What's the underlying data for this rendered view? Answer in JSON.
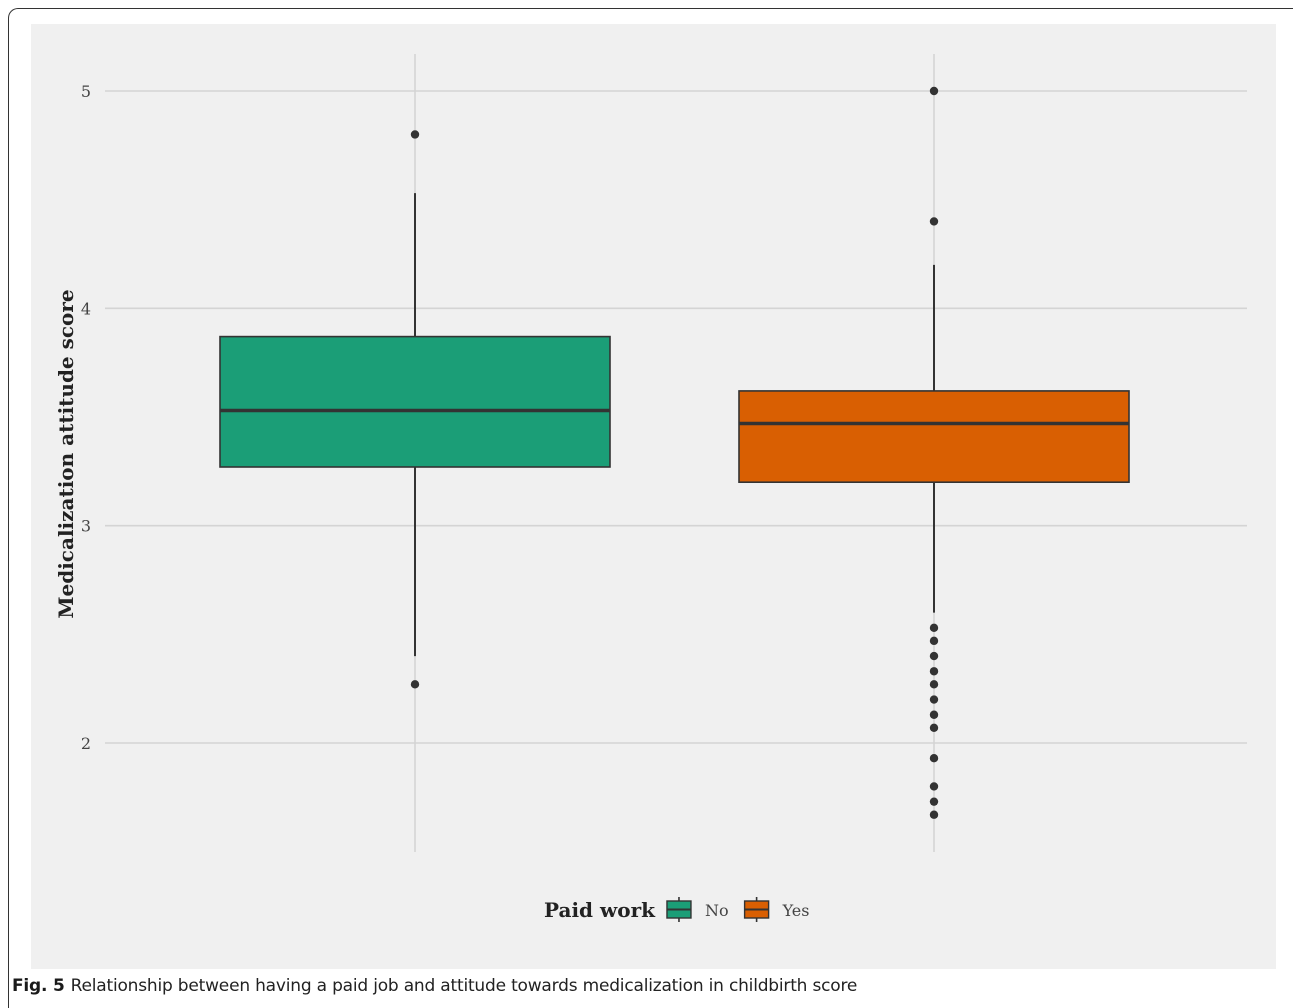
{
  "caption": {
    "label": "Fig. 5",
    "text": "Relationship between having a paid job and attitude towards medicalization in childbirth score"
  },
  "chart_data": {
    "type": "boxplot",
    "title": "",
    "xlabel": "",
    "ylabel": "Medicalization attitude score",
    "ylim": [
      1.5,
      5.17
    ],
    "yticks": [
      2,
      3,
      4,
      5
    ],
    "grid": true,
    "legend": {
      "title": "Paid work",
      "position": "bottom"
    },
    "background": "#f0f0f0",
    "gridColor": "#d4d4d4",
    "series": [
      {
        "name": "No",
        "color": "#1b9e77",
        "whisker_low": 2.4,
        "q1": 3.27,
        "median": 3.53,
        "q3": 3.87,
        "whisker_high": 4.53,
        "outliers": [
          4.8,
          2.27
        ]
      },
      {
        "name": "Yes",
        "color": "#d95f02",
        "whisker_low": 2.6,
        "q1": 3.2,
        "median": 3.47,
        "q3": 3.62,
        "whisker_high": 4.2,
        "outliers": [
          5.0,
          4.4,
          2.53,
          2.47,
          2.4,
          2.33,
          2.27,
          2.2,
          2.13,
          2.07,
          1.93,
          1.8,
          1.73,
          1.67
        ]
      }
    ]
  }
}
